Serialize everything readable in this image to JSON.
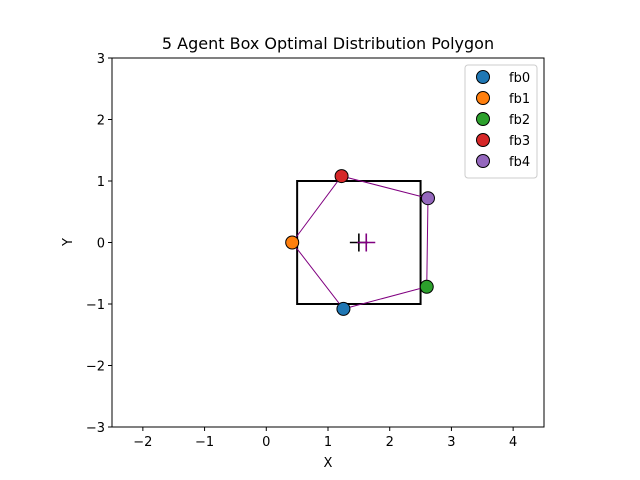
{
  "chart_data": {
    "type": "scatter",
    "title": "5 Agent Box Optimal Distribution Polygon",
    "xlabel": "X",
    "ylabel": "Y",
    "xlim": [
      -2.5,
      4.5
    ],
    "ylim": [
      -3,
      3
    ],
    "xticks": [
      -2,
      -1,
      0,
      1,
      2,
      3,
      4
    ],
    "yticks": [
      -3,
      -2,
      -1,
      0,
      1,
      2,
      3
    ],
    "xtick_labels": [
      "−2",
      "−1",
      "0",
      "1",
      "2",
      "3",
      "4"
    ],
    "ytick_labels": [
      "−3",
      "−2",
      "−1",
      "0",
      "1",
      "2",
      "3"
    ],
    "grid": false,
    "legend_position": "top-right",
    "box": {
      "x": [
        0.5,
        2.5
      ],
      "y": [
        -1,
        1
      ],
      "color": "#000000"
    },
    "polygon": {
      "color": "#800080",
      "order": [
        "fb1",
        "fb3",
        "fb4",
        "fb2",
        "fb0"
      ]
    },
    "series": [
      {
        "name": "fb0",
        "x": 1.25,
        "y": -1.08,
        "color": "#1f77b4"
      },
      {
        "name": "fb1",
        "x": 0.42,
        "y": 0.0,
        "color": "#ff7f0e"
      },
      {
        "name": "fb2",
        "x": 2.6,
        "y": -0.72,
        "color": "#2ca02c"
      },
      {
        "name": "fb3",
        "x": 1.22,
        "y": 1.08,
        "color": "#d62728"
      },
      {
        "name": "fb4",
        "x": 2.62,
        "y": 0.72,
        "color": "#9467bd"
      }
    ],
    "markers": [
      {
        "shape": "plus",
        "x": 1.5,
        "y": 0.0,
        "color": "#000000"
      },
      {
        "shape": "plus",
        "x": 1.62,
        "y": 0.0,
        "color": "#800080"
      }
    ]
  }
}
